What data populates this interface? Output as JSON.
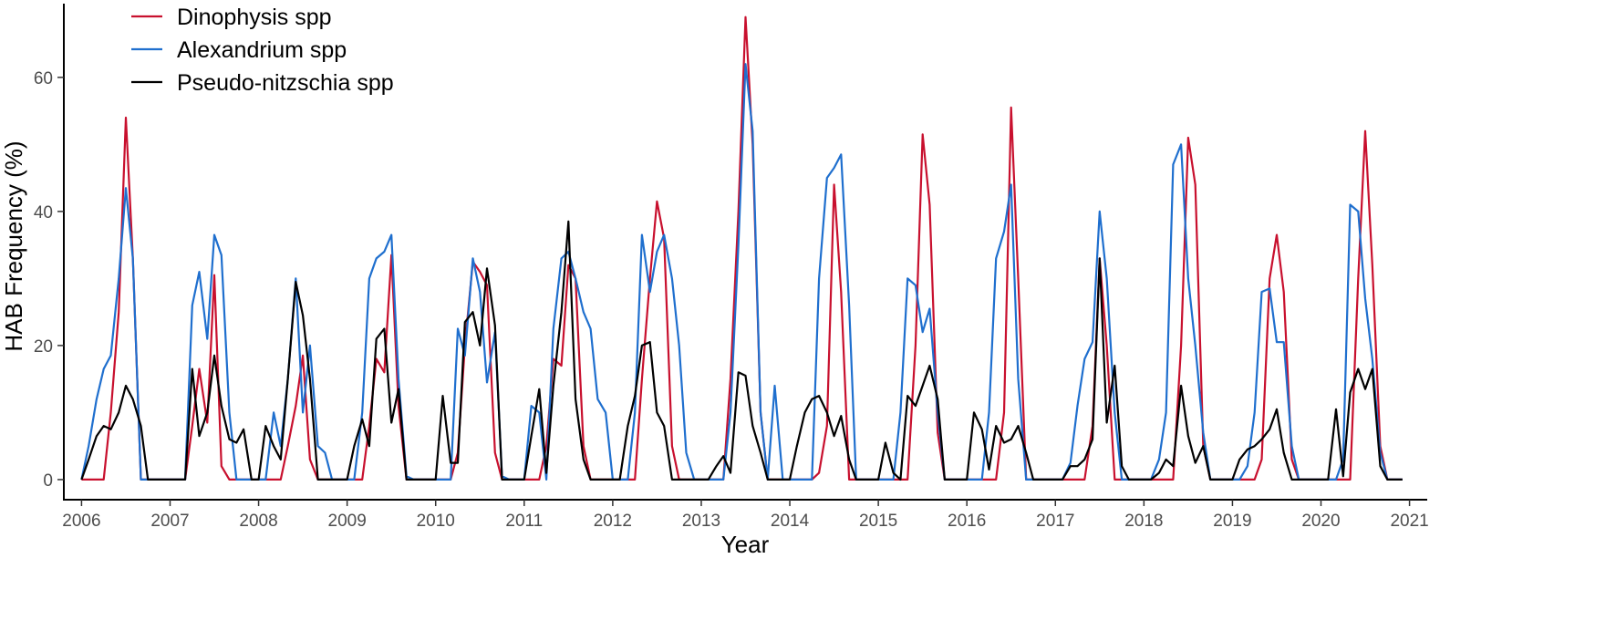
{
  "chart_data": {
    "type": "line",
    "title": "",
    "xlabel": "Year",
    "ylabel": "HAB Frequency (%)",
    "x_unit": "year",
    "xlim": [
      2005.8,
      2021.2
    ],
    "ylim": [
      -3,
      71
    ],
    "x_ticks": [
      2006,
      2007,
      2008,
      2009,
      2010,
      2011,
      2012,
      2013,
      2014,
      2015,
      2016,
      2017,
      2018,
      2019,
      2020,
      2021
    ],
    "x_tick_labels": [
      "2006",
      "2007",
      "2008",
      "2009",
      "2010",
      "2011",
      "2012",
      "2013",
      "2014",
      "2015",
      "2016",
      "2017",
      "2018",
      "2019",
      "2020",
      "2021"
    ],
    "y_ticks": [
      0,
      20,
      40,
      60
    ],
    "y_tick_labels": [
      "0",
      "20",
      "40",
      "60"
    ],
    "grid": false,
    "legend_position": "top-left",
    "series": [
      {
        "name": "Dinophysis spp",
        "color": "#c8102e",
        "x": [
          2006.0,
          2006.08,
          2006.17,
          2006.25,
          2006.33,
          2006.42,
          2006.5,
          2006.58,
          2006.67,
          2006.75,
          2006.83,
          2006.92,
          2007.0,
          2007.08,
          2007.17,
          2007.25,
          2007.33,
          2007.42,
          2007.5,
          2007.58,
          2007.67,
          2007.75,
          2007.83,
          2007.92,
          2008.0,
          2008.08,
          2008.17,
          2008.25,
          2008.33,
          2008.42,
          2008.5,
          2008.58,
          2008.67,
          2008.75,
          2008.83,
          2008.92,
          2009.0,
          2009.08,
          2009.17,
          2009.25,
          2009.33,
          2009.42,
          2009.5,
          2009.58,
          2009.67,
          2009.75,
          2009.83,
          2009.92,
          2010.0,
          2010.08,
          2010.17,
          2010.25,
          2010.33,
          2010.42,
          2010.5,
          2010.58,
          2010.67,
          2010.75,
          2010.83,
          2010.92,
          2011.0,
          2011.08,
          2011.17,
          2011.25,
          2011.33,
          2011.42,
          2011.5,
          2011.58,
          2011.67,
          2011.75,
          2011.83,
          2011.92,
          2012.0,
          2012.08,
          2012.17,
          2012.25,
          2012.33,
          2012.42,
          2012.5,
          2012.58,
          2012.67,
          2012.75,
          2012.83,
          2012.92,
          2013.0,
          2013.08,
          2013.17,
          2013.25,
          2013.33,
          2013.42,
          2013.5,
          2013.58,
          2013.67,
          2013.75,
          2013.83,
          2013.92,
          2014.0,
          2014.08,
          2014.17,
          2014.25,
          2014.33,
          2014.42,
          2014.5,
          2014.58,
          2014.67,
          2014.75,
          2014.83,
          2014.92,
          2015.0,
          2015.08,
          2015.17,
          2015.25,
          2015.33,
          2015.42,
          2015.5,
          2015.58,
          2015.67,
          2015.75,
          2015.83,
          2015.92,
          2016.0,
          2016.08,
          2016.17,
          2016.25,
          2016.33,
          2016.42,
          2016.5,
          2016.58,
          2016.67,
          2016.75,
          2016.83,
          2016.92,
          2017.0,
          2017.08,
          2017.17,
          2017.25,
          2017.33,
          2017.42,
          2017.5,
          2017.58,
          2017.67,
          2017.75,
          2017.83,
          2017.92,
          2018.0,
          2018.08,
          2018.17,
          2018.25,
          2018.33,
          2018.42,
          2018.5,
          2018.58,
          2018.67,
          2018.75,
          2018.83,
          2018.92,
          2019.0,
          2019.08,
          2019.17,
          2019.25,
          2019.33,
          2019.42,
          2019.5,
          2019.58,
          2019.67,
          2019.75,
          2019.83,
          2019.92,
          2020.0,
          2020.08,
          2020.17,
          2020.25,
          2020.33,
          2020.42,
          2020.5,
          2020.58,
          2020.67,
          2020.75,
          2020.83,
          2020.92
        ],
        "y": [
          0,
          0,
          0,
          0,
          10,
          25,
          54,
          33,
          0,
          0,
          0,
          0,
          0,
          0,
          0,
          8,
          16.5,
          8.5,
          30.5,
          2,
          0,
          0,
          0,
          0,
          0,
          0,
          0,
          0,
          5,
          11,
          18.5,
          3,
          0,
          0,
          0,
          0,
          0,
          0,
          0,
          8,
          18,
          16,
          33.5,
          11,
          0,
          0,
          0,
          0,
          0,
          0,
          0,
          4,
          20,
          32.5,
          31,
          29,
          4,
          0,
          0,
          0,
          0,
          0,
          0,
          5,
          18,
          17,
          32,
          30,
          5,
          0,
          0,
          0,
          0,
          0,
          0,
          0,
          15,
          30,
          41.5,
          36,
          5,
          0,
          0,
          0,
          0,
          0,
          0,
          0,
          15,
          40,
          69,
          50,
          10,
          0,
          0,
          0,
          0,
          0,
          0,
          0,
          1,
          8,
          44,
          28,
          0,
          0,
          0,
          0,
          0,
          0,
          0,
          0,
          0,
          20,
          51.5,
          41,
          7,
          0,
          0,
          0,
          0,
          0,
          0,
          0,
          0,
          10,
          55.5,
          30,
          0,
          0,
          0,
          0,
          0,
          0,
          0,
          0,
          0,
          8,
          33,
          20,
          0,
          0,
          0,
          0,
          0,
          0,
          0,
          0,
          0,
          20,
          51,
          44,
          5,
          0,
          0,
          0,
          0,
          0,
          0,
          0,
          3,
          30,
          36.5,
          28,
          3,
          0,
          0,
          0,
          0,
          0,
          0,
          0,
          0,
          30,
          52,
          32,
          5,
          0,
          0,
          0
        ]
      },
      {
        "name": "Alexandrium spp",
        "color": "#1f6fce",
        "x": [
          2006.0,
          2006.08,
          2006.17,
          2006.25,
          2006.33,
          2006.42,
          2006.5,
          2006.58,
          2006.67,
          2006.75,
          2006.83,
          2006.92,
          2007.0,
          2007.08,
          2007.17,
          2007.25,
          2007.33,
          2007.42,
          2007.5,
          2007.58,
          2007.67,
          2007.75,
          2007.83,
          2007.92,
          2008.0,
          2008.08,
          2008.17,
          2008.25,
          2008.33,
          2008.42,
          2008.5,
          2008.58,
          2008.67,
          2008.75,
          2008.83,
          2008.92,
          2009.0,
          2009.08,
          2009.17,
          2009.25,
          2009.33,
          2009.42,
          2009.5,
          2009.58,
          2009.67,
          2009.75,
          2009.83,
          2009.92,
          2010.0,
          2010.08,
          2010.17,
          2010.25,
          2010.33,
          2010.42,
          2010.5,
          2010.58,
          2010.67,
          2010.75,
          2010.83,
          2010.92,
          2011.0,
          2011.08,
          2011.17,
          2011.25,
          2011.33,
          2011.42,
          2011.5,
          2011.58,
          2011.67,
          2011.75,
          2011.83,
          2011.92,
          2012.0,
          2012.08,
          2012.17,
          2012.25,
          2012.33,
          2012.42,
          2012.5,
          2012.58,
          2012.67,
          2012.75,
          2012.83,
          2012.92,
          2013.0,
          2013.08,
          2013.17,
          2013.25,
          2013.33,
          2013.42,
          2013.5,
          2013.58,
          2013.67,
          2013.75,
          2013.83,
          2013.92,
          2014.0,
          2014.08,
          2014.17,
          2014.25,
          2014.33,
          2014.42,
          2014.5,
          2014.58,
          2014.67,
          2014.75,
          2014.83,
          2014.92,
          2015.0,
          2015.08,
          2015.17,
          2015.25,
          2015.33,
          2015.42,
          2015.5,
          2015.58,
          2015.67,
          2015.75,
          2015.83,
          2015.92,
          2016.0,
          2016.08,
          2016.17,
          2016.25,
          2016.33,
          2016.42,
          2016.5,
          2016.58,
          2016.67,
          2016.75,
          2016.83,
          2016.92,
          2017.0,
          2017.08,
          2017.17,
          2017.25,
          2017.33,
          2017.42,
          2017.5,
          2017.58,
          2017.67,
          2017.75,
          2017.83,
          2017.92,
          2018.0,
          2018.08,
          2018.17,
          2018.25,
          2018.33,
          2018.42,
          2018.5,
          2018.58,
          2018.67,
          2018.75,
          2018.83,
          2018.92,
          2019.0,
          2019.08,
          2019.17,
          2019.25,
          2019.33,
          2019.42,
          2019.5,
          2019.58,
          2019.67,
          2019.75,
          2019.83,
          2019.92,
          2020.0,
          2020.08,
          2020.17,
          2020.25,
          2020.33,
          2020.42,
          2020.5,
          2020.58,
          2020.67,
          2020.75,
          2020.83,
          2020.92
        ],
        "y": [
          0,
          5,
          12,
          16.5,
          18.5,
          30,
          43.5,
          33,
          0,
          0,
          0,
          0,
          0,
          0,
          0,
          26,
          31,
          21,
          36.5,
          33.5,
          10,
          0,
          0,
          0,
          0,
          0,
          10,
          5,
          15,
          30,
          10,
          20,
          5,
          4,
          0,
          0,
          0,
          0,
          10,
          30,
          33,
          34,
          36.5,
          15,
          0.5,
          0,
          0,
          0,
          0,
          0,
          0,
          22.5,
          18.5,
          33,
          28,
          14.5,
          22,
          0.5,
          0,
          0,
          0,
          11,
          10,
          0,
          22.5,
          33,
          34,
          30,
          25,
          22.5,
          12,
          10,
          0,
          0,
          0,
          10,
          36.5,
          28,
          34,
          36.5,
          30,
          20,
          4,
          0,
          0,
          0,
          0,
          0,
          10,
          35,
          62,
          52,
          10,
          0,
          14,
          0,
          0,
          0,
          0,
          0,
          30,
          45,
          46.5,
          48.5,
          26,
          0,
          0,
          0,
          0,
          0,
          0,
          10,
          30,
          29,
          22,
          25.5,
          10,
          0,
          0,
          0,
          0,
          0,
          0,
          10,
          33,
          37,
          44,
          15,
          0,
          0,
          0,
          0,
          0,
          0,
          2.5,
          11,
          18,
          20.5,
          40,
          30,
          10,
          0,
          0,
          0,
          0,
          0,
          3,
          10,
          47,
          50,
          30,
          20,
          7,
          0,
          0,
          0,
          0,
          0,
          2,
          10,
          28,
          28.5,
          20.5,
          20.5,
          5,
          0,
          0,
          0,
          0,
          0,
          0,
          3,
          41,
          40,
          27,
          18,
          4,
          0,
          0,
          0
        ]
      },
      {
        "name": "Pseudo-nitzschia spp",
        "color": "#000000",
        "x": [
          2006.0,
          2006.08,
          2006.17,
          2006.25,
          2006.33,
          2006.42,
          2006.5,
          2006.58,
          2006.67,
          2006.75,
          2006.83,
          2006.92,
          2007.0,
          2007.08,
          2007.17,
          2007.25,
          2007.33,
          2007.42,
          2007.5,
          2007.58,
          2007.67,
          2007.75,
          2007.83,
          2007.92,
          2008.0,
          2008.08,
          2008.17,
          2008.25,
          2008.33,
          2008.42,
          2008.5,
          2008.58,
          2008.67,
          2008.75,
          2008.83,
          2008.92,
          2009.0,
          2009.08,
          2009.17,
          2009.25,
          2009.33,
          2009.42,
          2009.5,
          2009.58,
          2009.67,
          2009.75,
          2009.83,
          2009.92,
          2010.0,
          2010.08,
          2010.17,
          2010.25,
          2010.33,
          2010.42,
          2010.5,
          2010.58,
          2010.67,
          2010.75,
          2010.83,
          2010.92,
          2011.0,
          2011.08,
          2011.17,
          2011.25,
          2011.33,
          2011.42,
          2011.5,
          2011.58,
          2011.67,
          2011.75,
          2011.83,
          2011.92,
          2012.0,
          2012.08,
          2012.17,
          2012.25,
          2012.33,
          2012.42,
          2012.5,
          2012.58,
          2012.67,
          2012.75,
          2012.83,
          2012.92,
          2013.0,
          2013.08,
          2013.17,
          2013.25,
          2013.33,
          2013.42,
          2013.5,
          2013.58,
          2013.67,
          2013.75,
          2013.83,
          2013.92,
          2014.0,
          2014.08,
          2014.17,
          2014.25,
          2014.33,
          2014.42,
          2014.5,
          2014.58,
          2014.67,
          2014.75,
          2014.83,
          2014.92,
          2015.0,
          2015.08,
          2015.17,
          2015.25,
          2015.33,
          2015.42,
          2015.5,
          2015.58,
          2015.67,
          2015.75,
          2015.83,
          2015.92,
          2016.0,
          2016.08,
          2016.17,
          2016.25,
          2016.33,
          2016.42,
          2016.5,
          2016.58,
          2016.67,
          2016.75,
          2016.83,
          2016.92,
          2017.0,
          2017.08,
          2017.17,
          2017.25,
          2017.33,
          2017.42,
          2017.5,
          2017.58,
          2017.67,
          2017.75,
          2017.83,
          2017.92,
          2018.0,
          2018.08,
          2018.17,
          2018.25,
          2018.33,
          2018.42,
          2018.5,
          2018.58,
          2018.67,
          2018.75,
          2018.83,
          2018.92,
          2019.0,
          2019.08,
          2019.17,
          2019.25,
          2019.33,
          2019.42,
          2019.5,
          2019.58,
          2019.67,
          2019.75,
          2019.83,
          2019.92,
          2020.0,
          2020.08,
          2020.17,
          2020.25,
          2020.33,
          2020.42,
          2020.5,
          2020.58,
          2020.67,
          2020.75,
          2020.83,
          2020.92
        ],
        "y": [
          0,
          3,
          6.5,
          8,
          7.5,
          10,
          14,
          12,
          8,
          0,
          0,
          0,
          0,
          0,
          0,
          16.5,
          6.5,
          10,
          18.5,
          11,
          6,
          5.5,
          7.5,
          0,
          0,
          8,
          5,
          3,
          15,
          29.5,
          24.5,
          15,
          0,
          0,
          0,
          0,
          0,
          5,
          9,
          5,
          21,
          22.5,
          8.5,
          13.5,
          0,
          0,
          0,
          0,
          0,
          12.5,
          2.5,
          2.5,
          23.5,
          25,
          20,
          31.5,
          23,
          0,
          0,
          0,
          0,
          6.5,
          13.5,
          1,
          14,
          25,
          38.5,
          12,
          3,
          0,
          0,
          0,
          0,
          0,
          8,
          12.5,
          20,
          20.5,
          10,
          8,
          0,
          0,
          0,
          0,
          0,
          0,
          2,
          3.5,
          1,
          16,
          15.5,
          8,
          4,
          0,
          0,
          0,
          0,
          5,
          10,
          12,
          12.5,
          10,
          6.5,
          9.5,
          3,
          0,
          0,
          0,
          0,
          5.5,
          1,
          0,
          12.5,
          11,
          14,
          17,
          12,
          0,
          0,
          0,
          0,
          10,
          7.5,
          1.5,
          8,
          5.5,
          6,
          8,
          4,
          0,
          0,
          0,
          0,
          0,
          2,
          2,
          3,
          6,
          33,
          8.5,
          17,
          2,
          0,
          0,
          0,
          0,
          1,
          3,
          2,
          14,
          6.5,
          2.5,
          5,
          0,
          0,
          0,
          0,
          3,
          4.5,
          5,
          6,
          7.5,
          10.5,
          4,
          0,
          0,
          0,
          0,
          0,
          0,
          10.5,
          0.5,
          13,
          16.5,
          13.5,
          16.5,
          2,
          0,
          0,
          0
        ]
      }
    ]
  }
}
